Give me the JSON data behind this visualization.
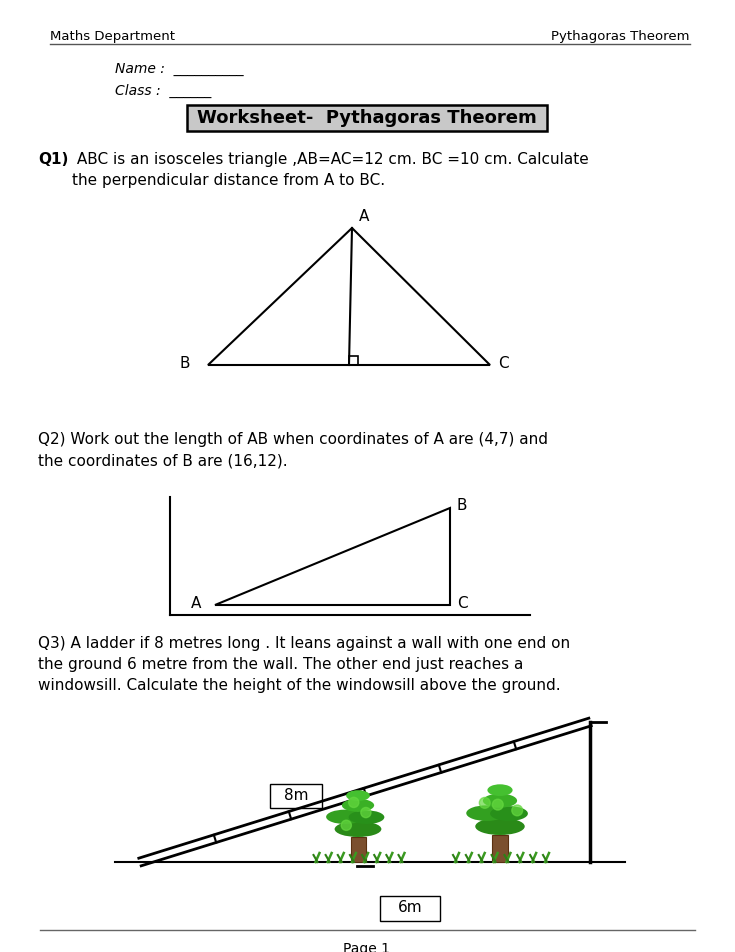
{
  "bg_color": "#ffffff",
  "header_left": "Maths Department",
  "header_right": "Pythagoras Theorem",
  "name_label": "Name :  __________",
  "class_label": "Class :  ______",
  "title": "Worksheet-  Pythagoras Theorem",
  "q1_text_bold": "Q1)",
  "q1_text_normal": "  ABC is an isosceles triangle ,AB=AC=12 cm. BC =10 cm. Calculate\nthe perpendicular distance from A to BC.",
  "q2_text": "Q2) Work out the length of AB when coordinates of A are (4,7) and\nthe coordinates of B are (16,12).",
  "q3_text": "Q3) A ladder if 8 metres long . It leans against a wall with one end on\nthe ground 6 metre from the wall. The other end just reaches a\nwindowsill. Calculate the height of the windowsill above the ground.",
  "page_label": "Page 1",
  "font_color": "#000000",
  "title_bg": "#c8c8c8",
  "ladder_label": "8m",
  "ground_label": "6m",
  "figw": 7.35,
  "figh": 9.52,
  "dpi": 100
}
